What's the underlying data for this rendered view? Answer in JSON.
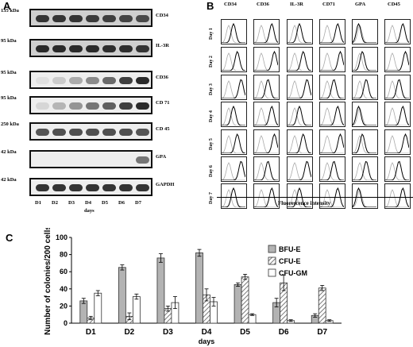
{
  "panels": {
    "a": "A",
    "b": "B",
    "c": "C"
  },
  "blot": {
    "rows": [
      {
        "kda": "135 kDa",
        "marker": "CD34",
        "intensity": [
          0.85,
          0.85,
          0.85,
          0.82,
          0.8,
          0.78,
          0.75
        ]
      },
      {
        "kda": "95 kDa",
        "marker": "IL-3R",
        "intensity": [
          0.9,
          0.9,
          0.9,
          0.9,
          0.88,
          0.88,
          0.85
        ]
      },
      {
        "kda": "95 kDa",
        "marker": "CD36",
        "intensity": [
          0.05,
          0.15,
          0.3,
          0.45,
          0.6,
          0.8,
          0.9
        ]
      },
      {
        "kda": "95 kDa",
        "marker": "CD 71",
        "intensity": [
          0.1,
          0.25,
          0.4,
          0.55,
          0.65,
          0.8,
          0.9
        ]
      },
      {
        "kda": "250 kDa",
        "marker": "CD 45",
        "intensity": [
          0.7,
          0.72,
          0.72,
          0.72,
          0.72,
          0.72,
          0.7
        ]
      },
      {
        "kda": "42 kDa",
        "marker": "GPA",
        "intensity": [
          0,
          0,
          0,
          0,
          0,
          0,
          0.55
        ]
      },
      {
        "kda": "42 kDa",
        "marker": "GAPDH",
        "intensity": [
          0.85,
          0.85,
          0.85,
          0.85,
          0.85,
          0.85,
          0.85
        ]
      }
    ],
    "days": [
      "D1",
      "D2",
      "D3",
      "D4",
      "D5",
      "D6",
      "D7"
    ],
    "xlabel": "days"
  },
  "flow": {
    "columns": [
      "CD34",
      "CD36",
      "IL-3R",
      "CD71",
      "GPA",
      "CD45"
    ],
    "rows": [
      "Day 1",
      "Day 2",
      "Day 3",
      "Day 4",
      "Day 5",
      "Day 6",
      "Day 7"
    ],
    "xlabel": "Fluorescence intensity"
  },
  "colors": {
    "bfu": "#b3b3b3",
    "cfu_e_hatch": "#7a7a7a",
    "cfu_gm": "#ffffff",
    "border": "#111111"
  },
  "chart_data": {
    "type": "bar",
    "categories": [
      "D1",
      "D2",
      "D3",
      "D4",
      "D5",
      "D6",
      "D7"
    ],
    "series": [
      {
        "name": "BFU-E",
        "values": [
          26,
          65,
          76,
          82,
          45,
          24,
          9
        ],
        "errors": [
          3,
          3,
          5,
          4,
          2,
          5,
          2
        ]
      },
      {
        "name": "CFU-E",
        "values": [
          6,
          8,
          17,
          33,
          54,
          47,
          41
        ],
        "errors": [
          2,
          4,
          3,
          7,
          3,
          9,
          3
        ]
      },
      {
        "name": "CFU-GM",
        "values": [
          35,
          31,
          24,
          25,
          10,
          3,
          3
        ],
        "errors": [
          3,
          3,
          7,
          5,
          1,
          1,
          1
        ]
      }
    ],
    "ylabel": "Number of colonies/200 cells",
    "xlabel": "days",
    "ylim": [
      0,
      100
    ],
    "yticks": [
      "0",
      "20",
      "40",
      "60",
      "80",
      "100"
    ],
    "legend_position": "top-right",
    "grid": false
  }
}
